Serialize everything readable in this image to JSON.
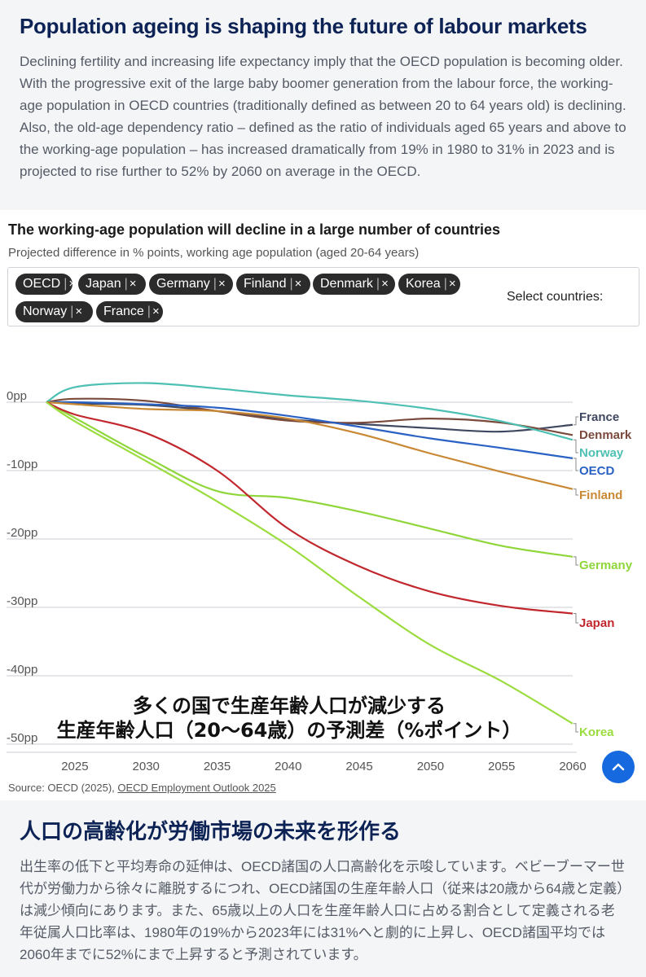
{
  "intro": {
    "title": "Population ageing is shaping the future of labour markets",
    "body": "Declining fertility and increasing life expectancy imply that the OECD population is becoming older. With the progressive exit of the large baby boomer generation from the labour force, the working-age population in OECD countries (traditionally defined as between 20 to 64 years old) is declining. Also, the old-age dependency ratio – defined as the ratio of individuals aged 65 years and above to the working-age population – has increased dramatically from 19% in 1980 to 31% in 2023 and is projected to rise further to 52% by 2060 on average in the OECD."
  },
  "card": {
    "title": "The working-age population will decline in a large number of countries",
    "subtitle": "Projected difference in % points, working age population (aged 20-64 years)",
    "select_label": "Select countries:",
    "chips": [
      "OECD",
      "Japan",
      "Germany",
      "Finland",
      "Denmark",
      "Korea",
      "Norway",
      "France"
    ],
    "chip_sep": "|",
    "chip_remove": "×",
    "source_prefix": "Source: OECD (2025), ",
    "source_link": "OECD Employment Outlook 2025",
    "overlay_line1": "多くの国で生産年齢人口が減少する",
    "overlay_line2": "生産年齢人口（20〜64歳）の予測差（%ポイント）",
    "scroll_top_icon": "chevron-up-icon"
  },
  "chart_data": {
    "type": "line",
    "x": [
      2023,
      2025,
      2030,
      2035,
      2040,
      2045,
      2050,
      2055,
      2060
    ],
    "xticks": [
      "2025",
      "2030",
      "2035",
      "2040",
      "2045",
      "2050",
      "2055",
      "2060"
    ],
    "xlim": [
      2023,
      2060
    ],
    "ylim": [
      -50,
      0
    ],
    "yticks": [
      "0pp",
      "-10pp",
      "-20pp",
      "-30pp",
      "-40pp",
      "-50pp"
    ],
    "grid": true,
    "legend": "right (labels at line ends)",
    "series": [
      {
        "name": "France",
        "color": "#3f4860",
        "values": [
          0,
          -0.2,
          -0.4,
          -1.3,
          -2.5,
          -3.2,
          -3.8,
          -4.3,
          -3.3
        ]
      },
      {
        "name": "Denmark",
        "color": "#7a4a3c",
        "values": [
          0,
          0.5,
          0.2,
          -1.3,
          -2.7,
          -3.0,
          -2.4,
          -3.0,
          -4.8
        ]
      },
      {
        "name": "Norway",
        "color": "#4dbfb3",
        "values": [
          0,
          2.2,
          2.8,
          2.0,
          1.0,
          0.2,
          -1.0,
          -2.8,
          -5.5
        ]
      },
      {
        "name": "OECD",
        "color": "#2a62c4",
        "values": [
          0,
          0,
          -0.3,
          -0.8,
          -2.0,
          -3.6,
          -5.3,
          -6.7,
          -8.2
        ]
      },
      {
        "name": "Finland",
        "color": "#c98834",
        "values": [
          0,
          -0.3,
          -1.0,
          -1.3,
          -2.4,
          -4.6,
          -7.5,
          -10.2,
          -12.7
        ]
      },
      {
        "name": "Germany",
        "color": "#8fd63a",
        "values": [
          0,
          -2.3,
          -8.0,
          -13.0,
          -14.0,
          -16.0,
          -18.5,
          -21.0,
          -22.6
        ]
      },
      {
        "name": "Japan",
        "color": "#c1272d",
        "values": [
          0,
          -1.8,
          -4.5,
          -10.0,
          -18.5,
          -24.0,
          -27.7,
          -29.8,
          -30.9
        ]
      },
      {
        "name": "Korea",
        "color": "#9bdc3e",
        "values": [
          0,
          -2.8,
          -8.6,
          -14.5,
          -21.0,
          -28.5,
          -35.5,
          -40.8,
          -47.0
        ]
      }
    ]
  }
}
